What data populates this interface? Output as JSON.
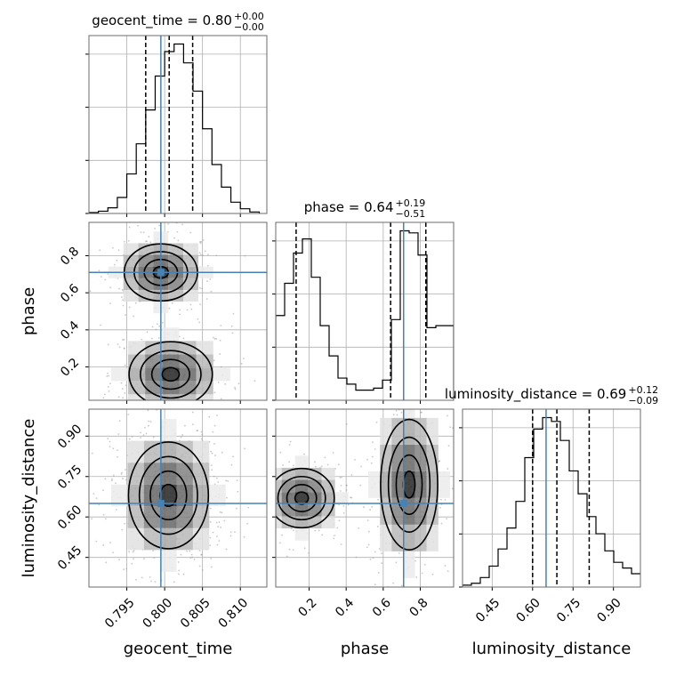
{
  "chart_data": {
    "type": "corner",
    "grid": true,
    "colors": {
      "truth": "#4682b4",
      "hist": "#000000",
      "quantile": "#000000",
      "scatter": "#9a9a9a"
    },
    "parameters": [
      {
        "name": "geocent_time",
        "range": [
          0.79,
          0.8135
        ],
        "ticks": [
          0.795,
          0.8,
          0.805,
          0.81
        ],
        "tick_labels": [
          "0.795",
          "0.800",
          "0.805",
          "0.810"
        ],
        "truth": 0.7995,
        "title": {
          "prefix": "geocent_time = 0.80",
          "upper": "+0.00",
          "lower": "−0.00"
        },
        "quantiles": [
          0.7975,
          0.8006,
          0.8037
        ],
        "hist_edges": [
          0.79,
          0.79125,
          0.7925,
          0.79375,
          0.795,
          0.79625,
          0.7975,
          0.79875,
          0.8,
          0.80125,
          0.8025,
          0.80375,
          0.805,
          0.80625,
          0.8075,
          0.80875,
          0.81,
          0.81125,
          0.8125
        ],
        "hist_counts": [
          0.5,
          1.2,
          3.0,
          8.5,
          21,
          37,
          55,
          73,
          86,
          90,
          80,
          65,
          45,
          26,
          14,
          6,
          2.5,
          0.8
        ]
      },
      {
        "name": "phase",
        "range": [
          0.02,
          0.98
        ],
        "ticks": [
          0.2,
          0.4,
          0.6,
          0.8
        ],
        "tick_labels": [
          "0.2",
          "0.4",
          "0.6",
          "0.8"
        ],
        "truth": 0.71,
        "title": {
          "prefix": "phase = 0.64",
          "upper": "+0.19",
          "lower": "−0.51"
        },
        "quantiles": [
          0.13,
          0.64,
          0.83
        ],
        "hist_edges": [
          0.02,
          0.068,
          0.116,
          0.164,
          0.212,
          0.26,
          0.308,
          0.356,
          0.404,
          0.452,
          0.5,
          0.548,
          0.596,
          0.644,
          0.692,
          0.74,
          0.788,
          0.836,
          0.884,
          0.932,
          0.98
        ],
        "hist_counts": [
          42,
          58,
          73,
          80,
          61,
          37,
          22,
          11,
          8,
          5,
          5,
          6,
          10,
          40,
          84,
          83,
          72,
          36,
          37,
          37
        ]
      },
      {
        "name": "luminosity_distance",
        "range": [
          0.34,
          1.0
        ],
        "ticks": [
          0.45,
          0.6,
          0.75,
          0.9
        ],
        "tick_labels": [
          "0.45",
          "0.60",
          "0.75",
          "0.90"
        ],
        "truth": 0.65,
        "title": {
          "prefix": "luminosity_distance = 0.69",
          "upper": "+0.12",
          "lower": "−0.09"
        },
        "quantiles": [
          0.6,
          0.69,
          0.81
        ],
        "hist_edges": [
          0.34,
          0.373,
          0.406,
          0.439,
          0.472,
          0.505,
          0.538,
          0.571,
          0.604,
          0.637,
          0.67,
          0.703,
          0.736,
          0.769,
          0.802,
          0.835,
          0.868,
          0.901,
          0.934,
          0.967,
          1.0
        ],
        "hist_counts": [
          1,
          2,
          5,
          11,
          20,
          31,
          45,
          68,
          83,
          89,
          87,
          77,
          61,
          49,
          37,
          28,
          19,
          13,
          10,
          7
        ]
      }
    ],
    "diagonal_y_ticks": 3
  }
}
